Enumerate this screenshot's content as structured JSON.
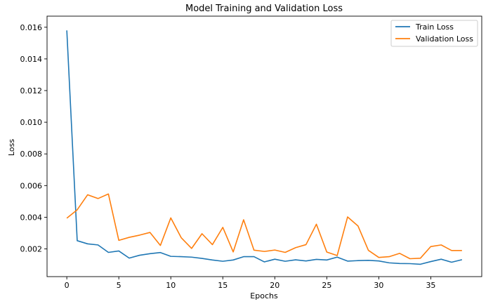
{
  "chart_data": {
    "type": "line",
    "title": "Model Training and Validation Loss",
    "xlabel": "Epochs",
    "ylabel": "Loss",
    "xlim": [
      -1.9,
      39.9
    ],
    "ylim": [
      0.00025,
      0.0167
    ],
    "x_ticks": [
      0,
      5,
      10,
      15,
      20,
      25,
      30,
      35
    ],
    "x_tick_labels": [
      "0",
      "5",
      "10",
      "15",
      "20",
      "25",
      "30",
      "35"
    ],
    "y_ticks": [
      0.002,
      0.004,
      0.006,
      0.008,
      0.01,
      0.012,
      0.014,
      0.016
    ],
    "y_tick_labels": [
      "0.002",
      "0.004",
      "0.006",
      "0.008",
      "0.010",
      "0.012",
      "0.014",
      "0.016"
    ],
    "grid": false,
    "legend_position": "top-right",
    "x": [
      0,
      1,
      2,
      3,
      4,
      5,
      6,
      7,
      8,
      9,
      10,
      11,
      12,
      13,
      14,
      15,
      16,
      17,
      18,
      19,
      20,
      21,
      22,
      23,
      24,
      25,
      26,
      27,
      28,
      29,
      30,
      31,
      32,
      33,
      34,
      35,
      36,
      37,
      38
    ],
    "series": [
      {
        "name": "Train Loss",
        "color": "#1f77b4",
        "values": [
          0.0158,
          0.00252,
          0.00232,
          0.00225,
          0.00178,
          0.00187,
          0.00142,
          0.0016,
          0.0017,
          0.00177,
          0.00153,
          0.00151,
          0.00148,
          0.0014,
          0.0013,
          0.00122,
          0.0013,
          0.00151,
          0.00151,
          0.00118,
          0.00135,
          0.00122,
          0.00131,
          0.00124,
          0.00134,
          0.0013,
          0.00148,
          0.00123,
          0.00126,
          0.00128,
          0.00124,
          0.00112,
          0.00108,
          0.00107,
          0.00103,
          0.0012,
          0.00135,
          0.00116,
          0.00132
        ]
      },
      {
        "name": "Validation Loss",
        "color": "#ff7f0e",
        "values": [
          0.00394,
          0.00447,
          0.00542,
          0.00518,
          0.00547,
          0.00254,
          0.00273,
          0.00287,
          0.00304,
          0.00222,
          0.00396,
          0.00271,
          0.00203,
          0.00296,
          0.00227,
          0.00336,
          0.00181,
          0.00384,
          0.00192,
          0.00184,
          0.00193,
          0.00178,
          0.00208,
          0.00227,
          0.00356,
          0.0018,
          0.00158,
          0.00402,
          0.00345,
          0.00191,
          0.00146,
          0.00151,
          0.00172,
          0.00138,
          0.00141,
          0.00215,
          0.00225,
          0.0019,
          0.0019
        ]
      }
    ]
  }
}
